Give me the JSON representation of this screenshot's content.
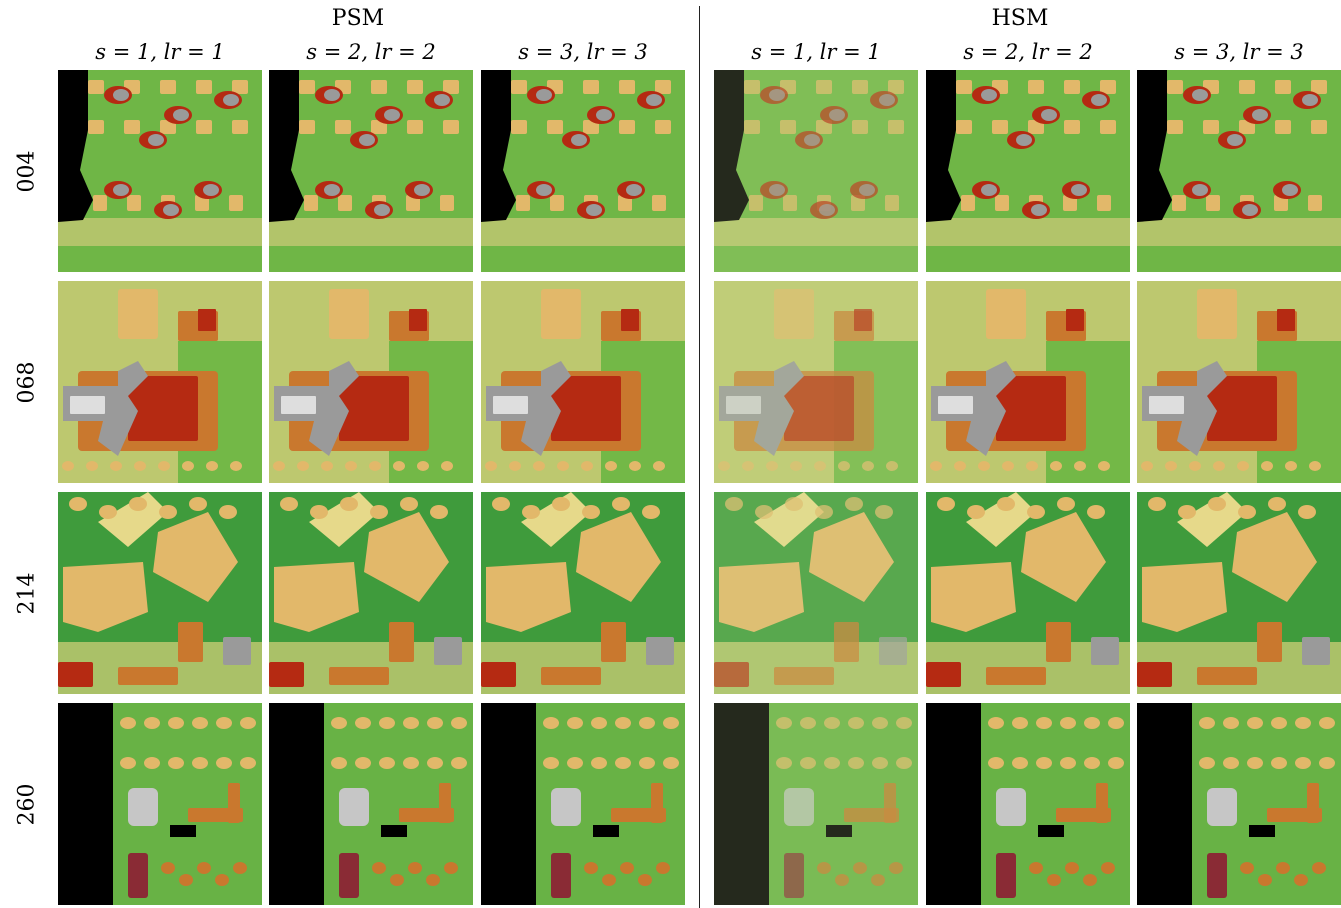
{
  "groups": [
    {
      "title": "PSM",
      "columns": [
        "s = 1, lr = 1",
        "s = 2, lr = 2",
        "s = 3, lr = 3"
      ]
    },
    {
      "title": "HSM",
      "columns": [
        "s = 1, lr = 1",
        "s = 2, lr = 2",
        "s = 3, lr = 3"
      ]
    }
  ],
  "rows": [
    "004",
    "068",
    "214",
    "260"
  ],
  "palette": {
    "ground_green": "#3f9b3c",
    "low_green": "#7fbf4a",
    "ground_yellow": "#d9d27a",
    "roof_tan": "#e2b86a",
    "roof_orange": "#c9782e",
    "roof_red": "#b52a12",
    "roof_gray": "#9a9a9a",
    "void_black": "#000000"
  }
}
